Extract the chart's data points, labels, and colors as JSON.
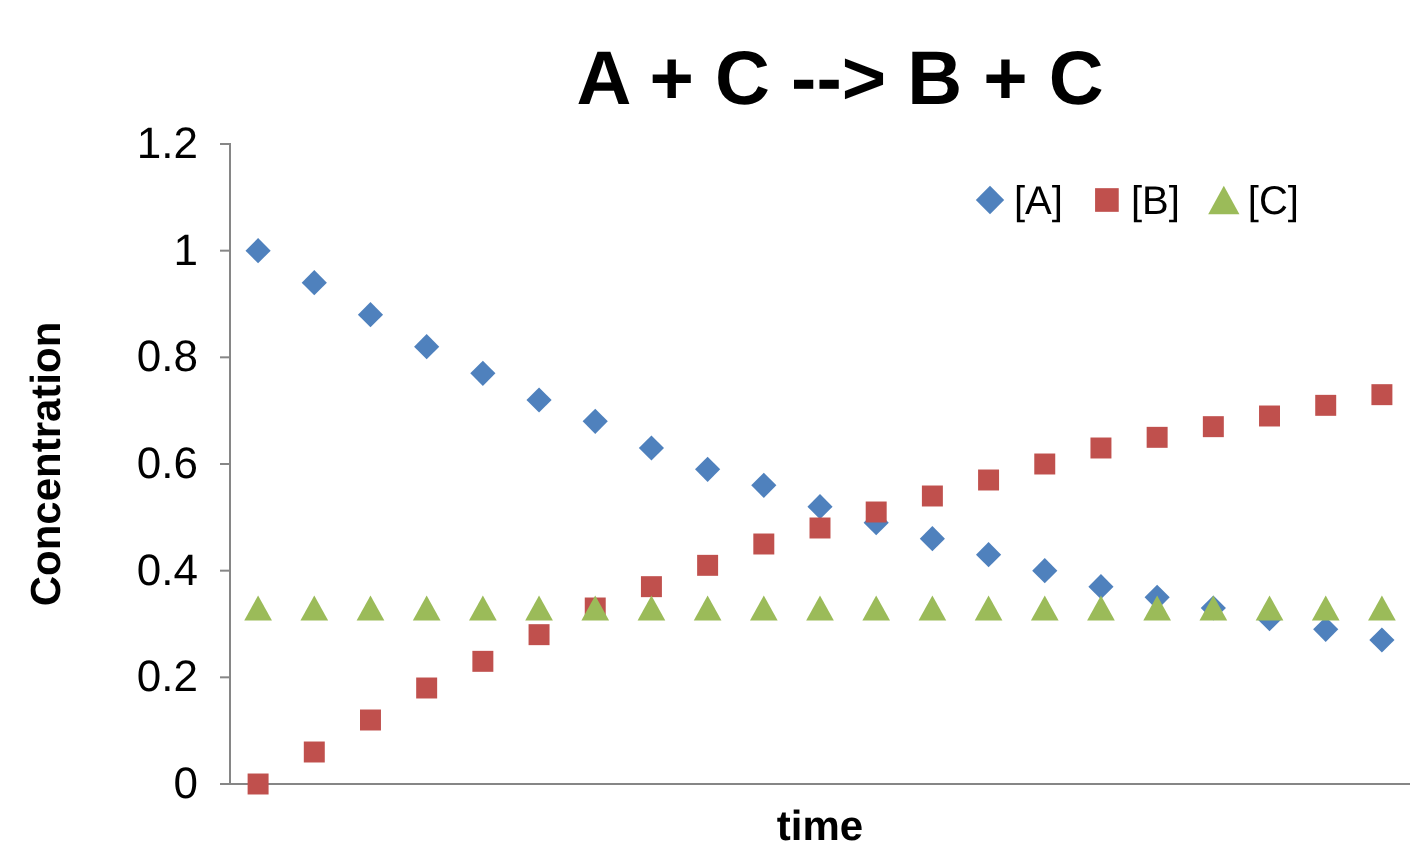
{
  "chart_data": {
    "type": "scatter",
    "title": "A + C --> B + C",
    "xlabel": "time",
    "ylabel": "Concentration",
    "categories": [
      null,
      null,
      null,
      null,
      null,
      null,
      null,
      null,
      null,
      null,
      null,
      null,
      null,
      null,
      null,
      null,
      null,
      null,
      null,
      null,
      null
    ],
    "ylim": [
      0,
      1.2
    ],
    "yticks": [
      0,
      0.2,
      0.4,
      0.6,
      0.8,
      1,
      1.2
    ],
    "grid": false,
    "legend": "top right",
    "series": [
      {
        "name": "[A]",
        "color": "#4f81bd",
        "marker": "diamond",
        "values": [
          1,
          0.94,
          0.88,
          0.82,
          0.77,
          0.72,
          0.68,
          0.63,
          0.59,
          0.56,
          0.52,
          0.49,
          0.46,
          0.43,
          0.4,
          0.37,
          0.35,
          0.33,
          0.31,
          0.29,
          0.27
        ]
      },
      {
        "name": "[B]",
        "color": "#c0504d",
        "marker": "square",
        "values": [
          0,
          0.06,
          0.12,
          0.18,
          0.23,
          0.28,
          0.33,
          0.37,
          0.41,
          0.45,
          0.48,
          0.51,
          0.54,
          0.57,
          0.6,
          0.63,
          0.65,
          0.67,
          0.69,
          0.71,
          0.73
        ]
      },
      {
        "name": "[C]",
        "color": "#9bbb59",
        "marker": "triangle",
        "values": [
          0.33,
          0.33,
          0.33,
          0.33,
          0.33,
          0.33,
          0.33,
          0.33,
          0.33,
          0.33,
          0.33,
          0.33,
          0.33,
          0.33,
          0.33,
          0.33,
          0.33,
          0.33,
          0.33,
          0.33,
          0.33
        ]
      }
    ]
  }
}
